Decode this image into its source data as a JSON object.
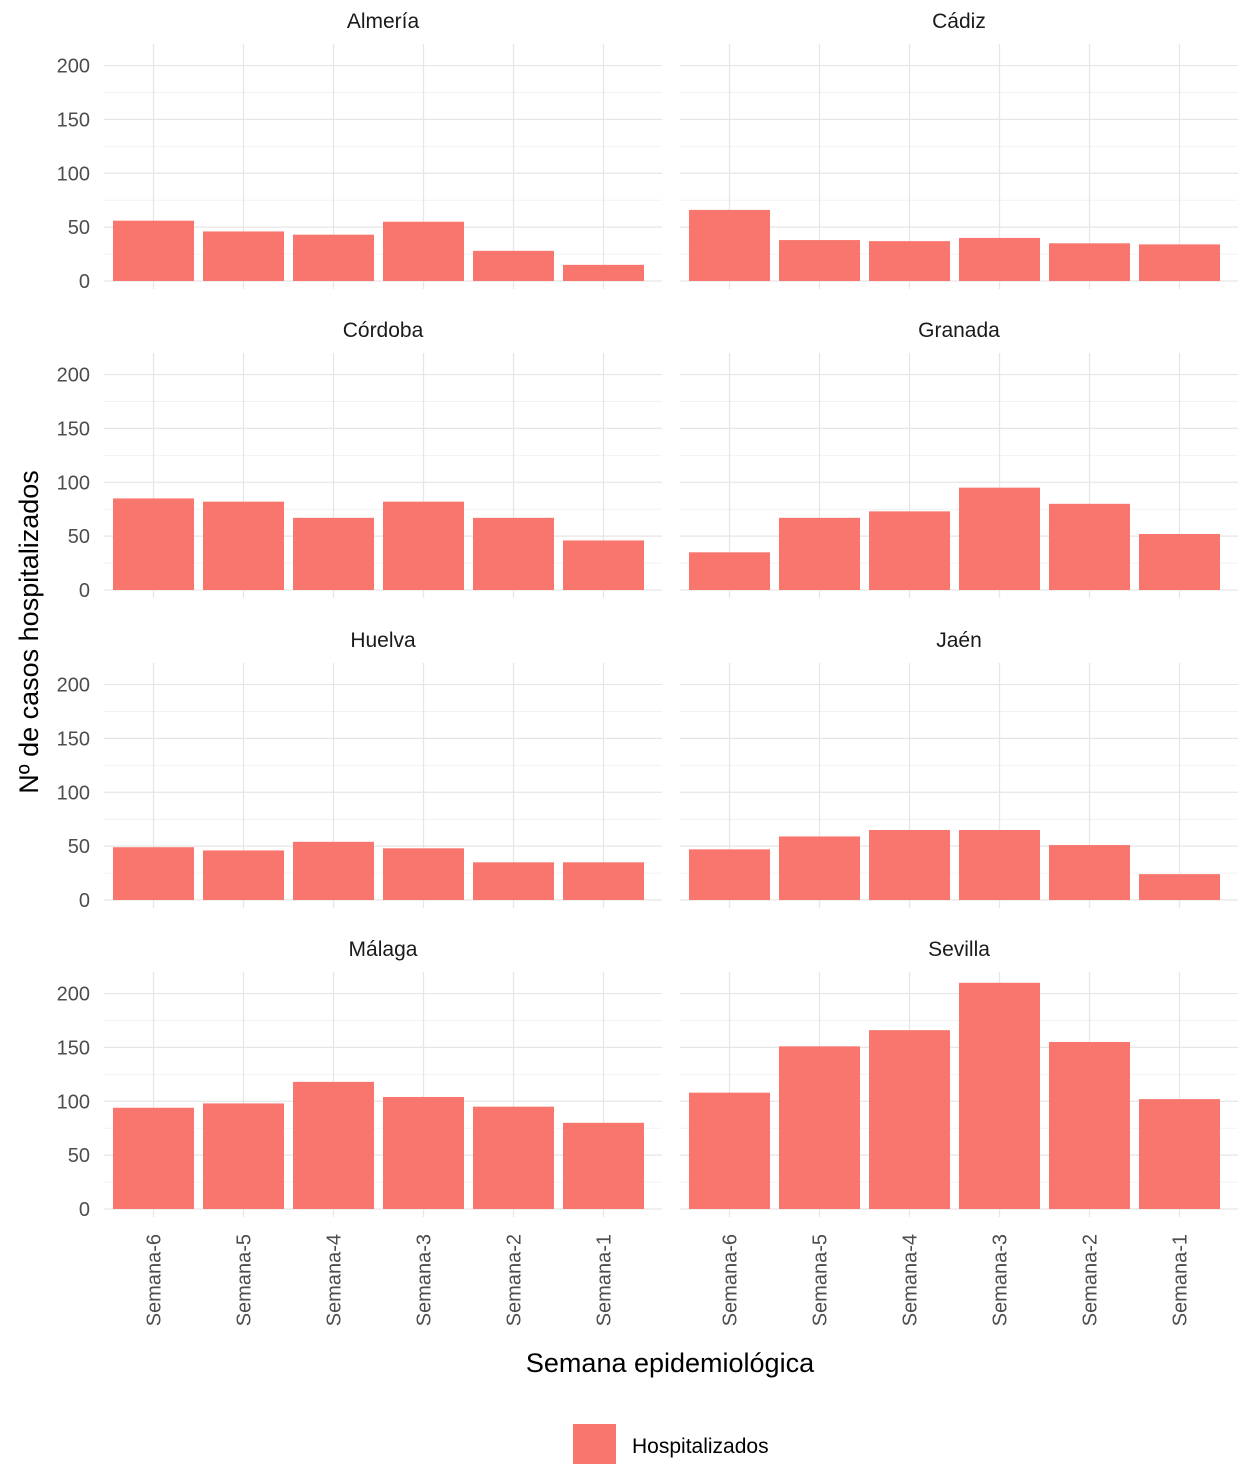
{
  "chart_data": {
    "type": "bar",
    "xlabel": "Semana epidemiológica",
    "ylabel": "Nº de casos hospitalizados",
    "ylim": [
      0,
      220
    ],
    "yticks": [
      0,
      50,
      100,
      150,
      200
    ],
    "categories": [
      "Semana-6",
      "Semana-5",
      "Semana-4",
      "Semana-3",
      "Semana-2",
      "Semana-1"
    ],
    "grid": true,
    "legend": {
      "position": "bottom",
      "label": "Hospitalizados"
    },
    "bar_color": "#F8766D",
    "panels": [
      {
        "title": "Almería",
        "values": [
          56,
          46,
          43,
          55,
          28,
          15
        ]
      },
      {
        "title": "Cádiz",
        "values": [
          66,
          38,
          37,
          40,
          35,
          34
        ]
      },
      {
        "title": "Córdoba",
        "values": [
          85,
          82,
          67,
          82,
          67,
          46
        ]
      },
      {
        "title": "Granada",
        "values": [
          35,
          67,
          73,
          95,
          80,
          52
        ]
      },
      {
        "title": "Huelva",
        "values": [
          49,
          46,
          54,
          48,
          35,
          35
        ]
      },
      {
        "title": "Jaén",
        "values": [
          47,
          59,
          65,
          65,
          51,
          24
        ]
      },
      {
        "title": "Málaga",
        "values": [
          94,
          98,
          118,
          104,
          95,
          80
        ]
      },
      {
        "title": "Sevilla",
        "values": [
          108,
          151,
          166,
          210,
          155,
          102
        ]
      }
    ]
  }
}
